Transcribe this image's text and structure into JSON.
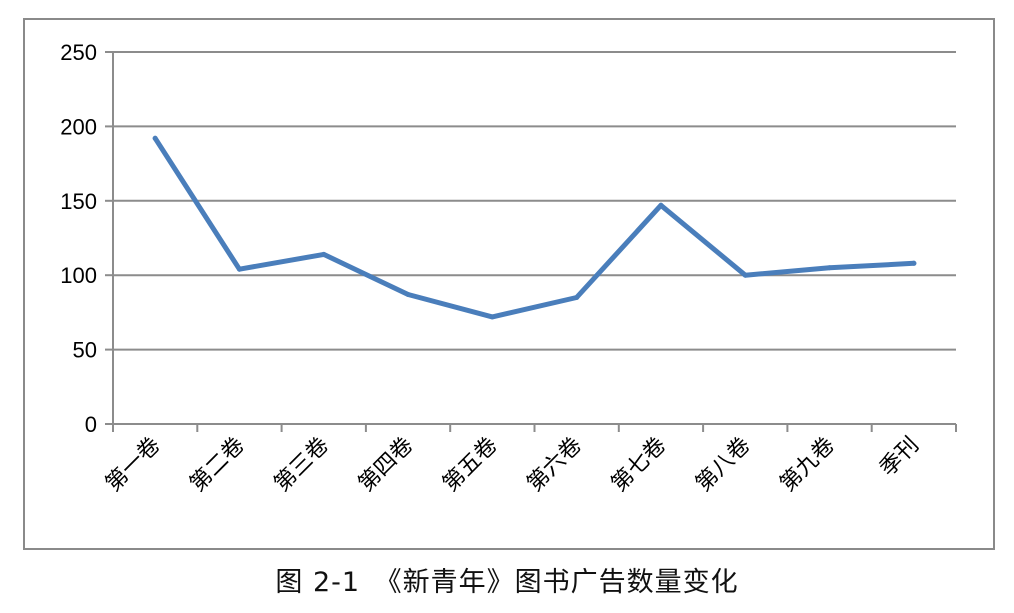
{
  "chart_data": {
    "type": "line",
    "categories": [
      "第一卷",
      "第二卷",
      "第三卷",
      "第四卷",
      "第五卷",
      "第六卷",
      "第七卷",
      "第八卷",
      "第九卷",
      "季刊"
    ],
    "series": [
      {
        "values": [
          192,
          104,
          114,
          87,
          72,
          85,
          147,
          100,
          105,
          108
        ]
      }
    ],
    "ylim": [
      0,
      250
    ],
    "yticks": [
      0,
      50,
      100,
      150,
      200,
      250
    ],
    "grid": true,
    "line_color": "#4a7ebb"
  },
  "caption": "图 2-1　《新青年》图书广告数量变化"
}
